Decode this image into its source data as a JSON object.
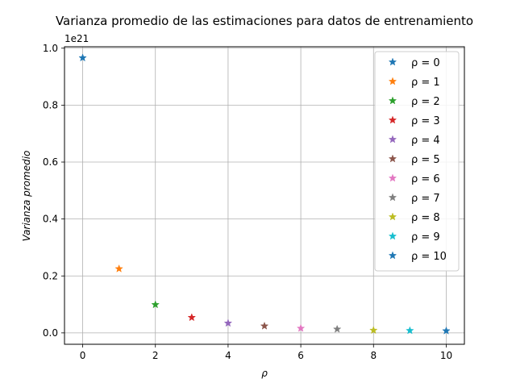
{
  "chart_data": {
    "type": "scatter",
    "title": "Varianza promedio de las estimaciones para datos de entrenamiento",
    "xlabel": "ρ",
    "ylabel": "Varianza promedio",
    "y_offset_label": "1e21",
    "xlim": [
      -0.5,
      10.5
    ],
    "ylim": [
      -0.04,
      1.005
    ],
    "x_ticks": [
      "0",
      "2",
      "4",
      "6",
      "8",
      "10"
    ],
    "y_ticks": [
      "0.0",
      "0.2",
      "0.4",
      "0.6",
      "0.8",
      "1.0"
    ],
    "grid": true,
    "legend_position": "upper right",
    "marker": "star",
    "series": [
      {
        "name": "ρ = 0",
        "x": 0,
        "y": 0.966,
        "color": "#1f77b4"
      },
      {
        "name": "ρ = 1",
        "x": 1,
        "y": 0.225,
        "color": "#ff7f0e"
      },
      {
        "name": "ρ = 2",
        "x": 2,
        "y": 0.099,
        "color": "#2ca02c"
      },
      {
        "name": "ρ = 3",
        "x": 3,
        "y": 0.054,
        "color": "#d62728"
      },
      {
        "name": "ρ = 4",
        "x": 4,
        "y": 0.034,
        "color": "#9467bd"
      },
      {
        "name": "ρ = 5",
        "x": 5,
        "y": 0.024,
        "color": "#8c564b"
      },
      {
        "name": "ρ = 6",
        "x": 6,
        "y": 0.016,
        "color": "#e377c2"
      },
      {
        "name": "ρ = 7",
        "x": 7,
        "y": 0.013,
        "color": "#7f7f7f"
      },
      {
        "name": "ρ = 8",
        "x": 8,
        "y": 0.009,
        "color": "#bcbd22"
      },
      {
        "name": "ρ = 9",
        "x": 9,
        "y": 0.008,
        "color": "#17becf"
      },
      {
        "name": "ρ = 10",
        "x": 10,
        "y": 0.007,
        "color": "#1f77b4"
      }
    ]
  }
}
